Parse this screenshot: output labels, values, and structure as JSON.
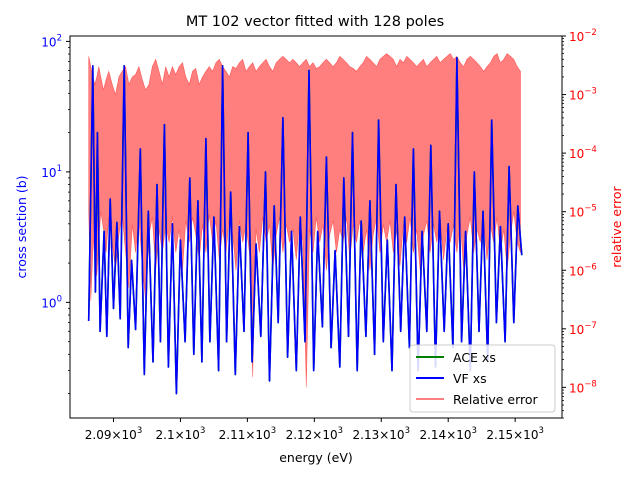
{
  "chart_data": {
    "type": "line",
    "title": "MT 102 vector fitted with 128 poles",
    "xlabel": "energy (eV)",
    "ylabel_left": "cross section (b)",
    "ylabel_right": "relative error",
    "x_range": [
      2083.5,
      2157.0
    ],
    "y_left_range": [
      0.13,
      110
    ],
    "y_left_scale": "log",
    "y_right_range": [
      3e-09,
      0.01
    ],
    "y_right_scale": "log",
    "x_ticks": [
      {
        "value": 2090,
        "base": "2.09",
        "mult": "×10",
        "exp": "3"
      },
      {
        "value": 2100,
        "base": "2.1",
        "mult": "×10",
        "exp": "3"
      },
      {
        "value": 2110,
        "base": "2.11",
        "mult": "×10",
        "exp": "3"
      },
      {
        "value": 2120,
        "base": "2.12",
        "mult": "×10",
        "exp": "3"
      },
      {
        "value": 2130,
        "base": "2.13",
        "mult": "×10",
        "exp": "3"
      },
      {
        "value": 2140,
        "base": "2.14",
        "mult": "×10",
        "exp": "3"
      },
      {
        "value": 2150,
        "base": "2.15",
        "mult": "×10",
        "exp": "3"
      }
    ],
    "y_left_ticks": [
      {
        "value": 1,
        "base": "10",
        "exp": "0"
      },
      {
        "value": 10,
        "base": "10",
        "exp": "1"
      },
      {
        "value": 100,
        "base": "10",
        "exp": "2"
      }
    ],
    "y_right_ticks": [
      {
        "value": 1e-08,
        "base": "10",
        "exp": "−8"
      },
      {
        "value": 1e-07,
        "base": "10",
        "exp": "−7"
      },
      {
        "value": 1e-06,
        "base": "10",
        "exp": "−6"
      },
      {
        "value": 1e-05,
        "base": "10",
        "exp": "−5"
      },
      {
        "value": 0.0001,
        "base": "10",
        "exp": "−4"
      },
      {
        "value": 0.001,
        "base": "10",
        "exp": "−3"
      },
      {
        "value": 0.01,
        "base": "10",
        "exp": "−2"
      }
    ],
    "legend_position": "lower right",
    "series": [
      {
        "name": "ACE xs",
        "axis": "left",
        "color": "#008000",
        "x": [
          2086.3,
          2086.9,
          2087.3,
          2087.6,
          2088.0,
          2088.6,
          2089.0,
          2089.5,
          2090.0,
          2090.5,
          2091.0,
          2091.6,
          2092.2,
          2092.7,
          2093.3,
          2094.0,
          2094.6,
          2095.2,
          2095.9,
          2096.5,
          2097.0,
          2097.6,
          2098.2,
          2098.8,
          2099.4,
          2100.0,
          2100.7,
          2101.4,
          2102.0,
          2102.6,
          2103.2,
          2103.8,
          2104.4,
          2105.0,
          2105.7,
          2106.3,
          2106.9,
          2107.5,
          2108.2,
          2108.8,
          2109.5,
          2110.1,
          2110.7,
          2111.3,
          2112.0,
          2112.7,
          2113.3,
          2114.0,
          2114.6,
          2115.3,
          2116.0,
          2116.6,
          2117.3,
          2117.9,
          2118.6,
          2119.2,
          2119.9,
          2120.5,
          2121.2,
          2121.8,
          2122.5,
          2123.1,
          2123.8,
          2124.4,
          2125.1,
          2125.7,
          2126.4,
          2127.0,
          2127.7,
          2128.3,
          2129.0,
          2129.6,
          2130.3,
          2130.9,
          2131.6,
          2132.2,
          2132.9,
          2133.5,
          2134.2,
          2134.8,
          2135.5,
          2136.1,
          2136.8,
          2137.4,
          2138.1,
          2138.7,
          2139.4,
          2140.0,
          2140.7,
          2141.3,
          2142.0,
          2142.6,
          2143.3,
          2143.9,
          2144.6,
          2145.2,
          2145.9,
          2146.5,
          2147.2,
          2147.8,
          2148.5,
          2149.1,
          2149.8,
          2150.4,
          2151.0
        ],
        "y": [
          0.72,
          65,
          1.2,
          20,
          0.6,
          3.5,
          0.55,
          6.2,
          0.9,
          4.1,
          0.75,
          65,
          0.45,
          2.1,
          0.62,
          15,
          0.28,
          5.0,
          0.35,
          8.0,
          0.5,
          23,
          0.32,
          4.0,
          0.2,
          3.0,
          0.5,
          9.0,
          0.4,
          6.0,
          0.35,
          18,
          0.5,
          4.5,
          0.3,
          65,
          0.5,
          7.0,
          0.28,
          3.8,
          0.6,
          20,
          0.35,
          2.8,
          0.55,
          10,
          0.25,
          5.5,
          0.7,
          26,
          0.38,
          3.5,
          0.3,
          4.5,
          0.5,
          60,
          0.3,
          3.5,
          0.65,
          13,
          0.45,
          2.5,
          0.32,
          9.0,
          0.55,
          20,
          0.3,
          4.2,
          0.55,
          6.0,
          0.4,
          25,
          0.5,
          3.0,
          0.3,
          8.0,
          0.6,
          4.5,
          0.45,
          15,
          0.3,
          3.5,
          0.6,
          16,
          0.32,
          5.0,
          0.6,
          4.0,
          0.45,
          75,
          0.5,
          3.5,
          0.3,
          10,
          0.6,
          5.0,
          0.35,
          25,
          0.7,
          3.8,
          0.5,
          11,
          0.7,
          5.5,
          2.3
        ]
      },
      {
        "name": "VF xs",
        "axis": "left",
        "color": "#0000ff",
        "x": [
          2086.3,
          2086.9,
          2087.3,
          2087.6,
          2088.0,
          2088.6,
          2089.0,
          2089.5,
          2090.0,
          2090.5,
          2091.0,
          2091.6,
          2092.2,
          2092.7,
          2093.3,
          2094.0,
          2094.6,
          2095.2,
          2095.9,
          2096.5,
          2097.0,
          2097.6,
          2098.2,
          2098.8,
          2099.4,
          2100.0,
          2100.7,
          2101.4,
          2102.0,
          2102.6,
          2103.2,
          2103.8,
          2104.4,
          2105.0,
          2105.7,
          2106.3,
          2106.9,
          2107.5,
          2108.2,
          2108.8,
          2109.5,
          2110.1,
          2110.7,
          2111.3,
          2112.0,
          2112.7,
          2113.3,
          2114.0,
          2114.6,
          2115.3,
          2116.0,
          2116.6,
          2117.3,
          2117.9,
          2118.6,
          2119.2,
          2119.9,
          2120.5,
          2121.2,
          2121.8,
          2122.5,
          2123.1,
          2123.8,
          2124.4,
          2125.1,
          2125.7,
          2126.4,
          2127.0,
          2127.7,
          2128.3,
          2129.0,
          2129.6,
          2130.3,
          2130.9,
          2131.6,
          2132.2,
          2132.9,
          2133.5,
          2134.2,
          2134.8,
          2135.5,
          2136.1,
          2136.8,
          2137.4,
          2138.1,
          2138.7,
          2139.4,
          2140.0,
          2140.7,
          2141.3,
          2142.0,
          2142.6,
          2143.3,
          2143.9,
          2144.6,
          2145.2,
          2145.9,
          2146.5,
          2147.2,
          2147.8,
          2148.5,
          2149.1,
          2149.8,
          2150.4,
          2151.0
        ],
        "y": [
          0.72,
          65,
          1.2,
          20,
          0.6,
          3.5,
          0.55,
          6.2,
          0.9,
          4.1,
          0.75,
          65,
          0.45,
          2.1,
          0.62,
          15,
          0.28,
          5.0,
          0.35,
          8.0,
          0.5,
          23,
          0.32,
          4.0,
          0.2,
          3.0,
          0.5,
          9.0,
          0.4,
          6.0,
          0.35,
          18,
          0.5,
          4.5,
          0.3,
          65,
          0.5,
          7.0,
          0.28,
          3.8,
          0.6,
          20,
          0.35,
          2.8,
          0.55,
          10,
          0.25,
          5.5,
          0.7,
          26,
          0.38,
          3.5,
          0.3,
          4.5,
          0.5,
          60,
          0.3,
          3.5,
          0.65,
          13,
          0.45,
          2.5,
          0.32,
          9.0,
          0.55,
          20,
          0.3,
          4.2,
          0.55,
          6.0,
          0.4,
          25,
          0.5,
          3.0,
          0.3,
          8.0,
          0.6,
          4.5,
          0.45,
          15,
          0.3,
          3.5,
          0.6,
          16,
          0.32,
          5.0,
          0.6,
          4.0,
          0.45,
          75,
          0.5,
          3.5,
          0.3,
          10,
          0.6,
          5.0,
          0.35,
          25,
          0.7,
          3.8,
          0.5,
          11,
          0.7,
          5.5,
          2.3
        ]
      },
      {
        "name": "Relative error",
        "axis": "right",
        "color": "#ff0000",
        "alpha": 0.5,
        "x": [
          2086.3,
          2086.6,
          2086.9,
          2087.2,
          2087.5,
          2087.8,
          2088.1,
          2088.5,
          2088.9,
          2089.3,
          2089.8,
          2090.3,
          2090.8,
          2091.3,
          2091.8,
          2092.3,
          2092.8,
          2093.3,
          2093.8,
          2094.3,
          2094.8,
          2095.3,
          2095.8,
          2096.3,
          2096.8,
          2097.3,
          2097.8,
          2098.3,
          2098.8,
          2099.3,
          2099.8,
          2100.3,
          2100.8,
          2101.3,
          2101.8,
          2102.3,
          2102.8,
          2103.3,
          2103.8,
          2104.3,
          2104.8,
          2105.3,
          2105.8,
          2106.3,
          2106.8,
          2107.3,
          2107.8,
          2108.3,
          2108.8,
          2109.3,
          2109.8,
          2110.3,
          2110.8,
          2111.3,
          2111.8,
          2112.3,
          2112.8,
          2113.3,
          2113.8,
          2114.3,
          2114.8,
          2115.3,
          2115.8,
          2116.3,
          2116.8,
          2117.3,
          2117.8,
          2118.3,
          2118.8,
          2119.3,
          2119.8,
          2120.3,
          2120.8,
          2121.3,
          2121.8,
          2122.3,
          2122.8,
          2123.3,
          2123.8,
          2124.3,
          2124.8,
          2125.3,
          2125.8,
          2126.3,
          2126.8,
          2127.3,
          2127.8,
          2128.3,
          2128.8,
          2129.3,
          2129.8,
          2130.3,
          2130.8,
          2131.3,
          2131.8,
          2132.3,
          2132.8,
          2133.3,
          2133.8,
          2134.3,
          2134.8,
          2135.3,
          2135.8,
          2136.3,
          2136.8,
          2137.3,
          2137.8,
          2138.3,
          2138.8,
          2139.3,
          2139.8,
          2140.3,
          2140.8,
          2141.3,
          2141.8,
          2142.3,
          2142.8,
          2143.3,
          2143.8,
          2144.3,
          2144.8,
          2145.3,
          2145.8,
          2146.3,
          2146.8,
          2147.3,
          2147.8,
          2148.3,
          2148.8,
          2149.3,
          2149.8,
          2150.3,
          2150.8
        ],
        "y_high": [
          0.0045,
          0.003,
          0.002,
          0.0015,
          0.002,
          0.003,
          0.002,
          0.0012,
          0.0018,
          0.0025,
          0.0015,
          0.001,
          0.002,
          0.0025,
          0.003,
          0.0015,
          0.002,
          0.0022,
          0.003,
          0.0018,
          0.0012,
          0.0015,
          0.003,
          0.004,
          0.0025,
          0.0015,
          0.003,
          0.002,
          0.003,
          0.0022,
          0.003,
          0.0035,
          0.002,
          0.0015,
          0.0025,
          0.0028,
          0.0015,
          0.002,
          0.0025,
          0.003,
          0.0025,
          0.0035,
          0.004,
          0.003,
          0.0025,
          0.002,
          0.003,
          0.0028,
          0.0035,
          0.004,
          0.0025,
          0.003,
          0.0035,
          0.0025,
          0.003,
          0.0035,
          0.004,
          0.003,
          0.0025,
          0.0035,
          0.004,
          0.0045,
          0.004,
          0.0035,
          0.004,
          0.0035,
          0.003,
          0.0035,
          0.004,
          0.003,
          0.0035,
          0.0028,
          0.003,
          0.0035,
          0.004,
          0.0035,
          0.003,
          0.0035,
          0.0045,
          0.004,
          0.0035,
          0.003,
          0.0028,
          0.0025,
          0.003,
          0.0035,
          0.0045,
          0.004,
          0.0035,
          0.003,
          0.004,
          0.0045,
          0.005,
          0.0045,
          0.004,
          0.003,
          0.004,
          0.0035,
          0.0045,
          0.004,
          0.0035,
          0.003,
          0.0035,
          0.004,
          0.003,
          0.0035,
          0.004,
          0.0045,
          0.0035,
          0.004,
          0.0045,
          0.005,
          0.004,
          0.0045,
          0.0035,
          0.003,
          0.004,
          0.0045,
          0.004,
          0.0035,
          0.003,
          0.0025,
          0.003,
          0.0035,
          0.0045,
          0.005,
          0.0035,
          0.004,
          0.005,
          0.0045,
          0.004,
          0.003,
          0.0025
        ],
        "y_low": [
          1e-05,
          3e-07,
          2e-06,
          5e-06,
          8e-07,
          3e-06,
          1e-05,
          5e-06,
          2e-06,
          8e-06,
          3e-06,
          1e-06,
          4e-06,
          9e-06,
          2e-06,
          5e-07,
          6e-06,
          2e-06,
          7e-06,
          1.2e-06,
          3e-07,
          4e-06,
          8e-06,
          1e-06,
          5e-06,
          2e-06,
          6e-06,
          3e-06,
          8e-06,
          2e-06,
          5e-06,
          1e-06,
          7e-06,
          3e-06,
          8e-06,
          4e-06,
          1.5e-06,
          6e-06,
          2e-06,
          9e-06,
          3e-06,
          7e-06,
          1.5e-06,
          5e-06,
          2e-06,
          8e-06,
          4e-06,
          1e-06,
          7e-06,
          3e-06,
          6e-06,
          2e-06,
          1.5e-08,
          5e-06,
          2e-06,
          8e-06,
          3e-06,
          6e-06,
          1e-06,
          4e-06,
          8e-06,
          2e-06,
          6e-06,
          3e-06,
          5e-06,
          1.5e-06,
          7e-06,
          3e-06,
          1e-08,
          5e-06,
          2e-06,
          8e-06,
          3e-06,
          6e-06,
          1e-06,
          4e-06,
          7e-06,
          2e-06,
          5e-06,
          3e-06,
          8e-06,
          1.5e-06,
          6e-06,
          3e-06,
          7e-06,
          2e-06,
          5e-06,
          1e-06,
          4e-06,
          8e-06,
          2e-06,
          6e-06,
          3e-06,
          7e-06,
          2e-06,
          5e-06,
          1.2e-06,
          6e-06,
          3e-06,
          8e-06,
          2e-06,
          5e-06,
          1e-06,
          4e-06,
          7e-06,
          2e-06,
          6e-06,
          3e-06,
          8e-06,
          1.5e-06,
          5e-06,
          3e-06,
          6e-06,
          2e-06,
          7e-06,
          1e-06,
          4e-06,
          8e-06,
          2e-06,
          5e-06,
          3e-06,
          7e-06,
          1.5e-06,
          6e-06,
          3e-06,
          8e-06,
          2e-06,
          5e-06,
          1e-06,
          4e-06,
          1e-05,
          3e-06,
          2e-06
        ]
      }
    ],
    "legend": [
      {
        "label": "ACE xs",
        "color": "#008000",
        "alpha": 1
      },
      {
        "label": "VF xs",
        "color": "#0000ff",
        "alpha": 1
      },
      {
        "label": "Relative error",
        "color": "#ff0000",
        "alpha": 0.5
      }
    ],
    "colors": {
      "left_axis": "#0000ff",
      "right_axis": "#ff0000",
      "frame": "#000000"
    }
  }
}
